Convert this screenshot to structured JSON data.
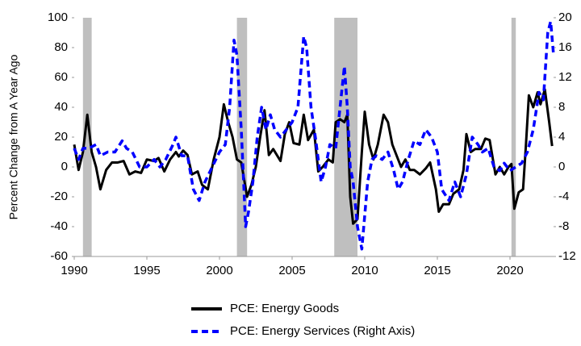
{
  "chart_data": {
    "type": "line",
    "y_label": "Percent Change from A Year Ago",
    "xlim": [
      1990,
      2023
    ],
    "xticks": [
      1990,
      1995,
      2000,
      2005,
      2010,
      2015,
      2020
    ],
    "ylim": [
      -60,
      100
    ],
    "yticks": [
      -60,
      -40,
      -20,
      0,
      20,
      40,
      60,
      80,
      100
    ],
    "y2lim": [
      -12,
      20
    ],
    "y2ticks": [
      -12,
      -8,
      -4,
      0,
      4,
      8,
      12,
      16,
      20
    ],
    "shaded_periods": [
      [
        1990.6,
        1991.2
      ],
      [
        2001.2,
        2001.9
      ],
      [
        2007.9,
        2009.5
      ],
      [
        2020.1,
        2020.4
      ]
    ],
    "shade_color": "#bfbfbf",
    "legend": "bottom",
    "series": [
      {
        "name": "PCE: Energy Goods",
        "color": "#000000",
        "dash": false,
        "axis": "y",
        "x": [
          1990.0,
          1990.3,
          1990.6,
          1990.9,
          1991.2,
          1991.5,
          1991.8,
          1992.2,
          1992.6,
          1993.0,
          1993.4,
          1993.8,
          1994.2,
          1994.6,
          1995.0,
          1995.5,
          1995.8,
          1996.2,
          1996.6,
          1997.0,
          1997.2,
          1997.5,
          1997.8,
          1998.1,
          1998.5,
          1998.8,
          1999.2,
          1999.6,
          2000.0,
          2000.3,
          2000.6,
          2000.9,
          2001.2,
          2001.5,
          2001.9,
          2002.2,
          2002.5,
          2002.8,
          2003.1,
          2003.4,
          2003.7,
          2004.2,
          2004.5,
          2004.8,
          2005.1,
          2005.5,
          2005.8,
          2006.1,
          2006.5,
          2006.8,
          2007.1,
          2007.5,
          2007.8,
          2008.0,
          2008.3,
          2008.6,
          2008.8,
          2009.0,
          2009.2,
          2009.5,
          2009.8,
          2010.0,
          2010.3,
          2010.6,
          2010.9,
          2011.3,
          2011.6,
          2011.9,
          2012.3,
          2012.5,
          2012.8,
          2013.1,
          2013.4,
          2013.8,
          2014.2,
          2014.5,
          2014.9,
          2015.1,
          2015.4,
          2015.8,
          2016.1,
          2016.5,
          2016.8,
          2017.0,
          2017.3,
          2017.6,
          2018.0,
          2018.3,
          2018.6,
          2019.0,
          2019.3,
          2019.6,
          2019.9,
          2020.1,
          2020.3,
          2020.6,
          2020.9,
          2021.1,
          2021.3,
          2021.6,
          2021.9,
          2022.1,
          2022.4,
          2022.7,
          2022.9
        ],
        "values": [
          15,
          -2,
          10,
          35,
          10,
          0,
          -15,
          -2,
          3,
          3,
          4,
          -5,
          -3,
          -4,
          5,
          4,
          6,
          -3,
          5,
          10,
          7,
          11,
          8,
          -5,
          -3,
          -12,
          -15,
          5,
          20,
          42,
          30,
          20,
          5,
          3,
          -20,
          -12,
          0,
          20,
          38,
          8,
          12,
          4,
          22,
          30,
          16,
          15,
          35,
          18,
          25,
          -3,
          0,
          5,
          3,
          30,
          32,
          30,
          35,
          -20,
          -38,
          -35,
          10,
          37,
          15,
          5,
          15,
          35,
          30,
          15,
          5,
          0,
          5,
          -2,
          -2,
          -5,
          -1,
          3,
          -15,
          -30,
          -25,
          -25,
          -18,
          -15,
          -2,
          22,
          10,
          12,
          12,
          19,
          18,
          -5,
          0,
          -5,
          0,
          2,
          -28,
          -17,
          -15,
          15,
          48,
          40,
          50,
          42,
          52,
          30,
          14
        ]
      },
      {
        "name": "PCE: Energy Services (Right Axis)",
        "color": "#0000ff",
        "dash": true,
        "axis": "y2",
        "x": [
          1990.0,
          1990.3,
          1990.6,
          1991.0,
          1991.5,
          1991.8,
          1992.3,
          1992.8,
          1993.3,
          1993.6,
          1994.0,
          1994.5,
          1995.0,
          1995.5,
          1995.9,
          1996.3,
          1996.8,
          1997.0,
          1997.4,
          1997.8,
          1998.2,
          1998.6,
          1999.0,
          1999.5,
          2000.0,
          2000.4,
          2000.7,
          2001.0,
          2001.2,
          2001.5,
          2001.8,
          2002.0,
          2002.3,
          2002.6,
          2002.9,
          2003.2,
          2003.5,
          2003.8,
          2004.2,
          2004.6,
          2005.0,
          2005.4,
          2005.8,
          2006.0,
          2006.3,
          2006.6,
          2007.0,
          2007.3,
          2007.6,
          2008.0,
          2008.3,
          2008.6,
          2008.8,
          2009.0,
          2009.2,
          2009.5,
          2009.8,
          2010.2,
          2010.5,
          2010.8,
          2011.2,
          2011.6,
          2012.0,
          2012.3,
          2012.6,
          2013.0,
          2013.4,
          2013.8,
          2014.2,
          2014.6,
          2015.0,
          2015.3,
          2015.8,
          2016.2,
          2016.6,
          2017.0,
          2017.4,
          2017.8,
          2018.1,
          2018.5,
          2018.9,
          2019.3,
          2019.6,
          2020.0,
          2020.4,
          2020.8,
          2021.2,
          2021.6,
          2022.0,
          2022.3,
          2022.6,
          2022.8,
          2023.0
        ],
        "values": [
          2.5,
          1,
          2.5,
          2.5,
          3,
          1.5,
          2,
          2,
          3.5,
          2.5,
          2,
          0,
          0,
          1,
          0,
          1,
          3,
          4,
          1.5,
          1.5,
          -3,
          -4.5,
          -2,
          0,
          2,
          3,
          8,
          17,
          15,
          5,
          -8,
          -6,
          -2,
          4,
          8,
          5,
          7,
          5,
          4,
          5,
          6,
          8,
          17.5,
          16,
          8,
          4,
          -2,
          0,
          3,
          2.5,
          8,
          13.5,
          8,
          0,
          -2,
          -8,
          -11,
          -2,
          1,
          1.5,
          1,
          2,
          -0.5,
          -3,
          -2,
          1,
          3.5,
          3,
          5,
          4,
          2,
          -3,
          -4.5,
          -2,
          -4,
          -1,
          4,
          3,
          2,
          2.5,
          0,
          -0.5,
          0.5,
          -0.5,
          0,
          0.5,
          2,
          5,
          10,
          9,
          18,
          19.5,
          15
        ]
      }
    ]
  }
}
